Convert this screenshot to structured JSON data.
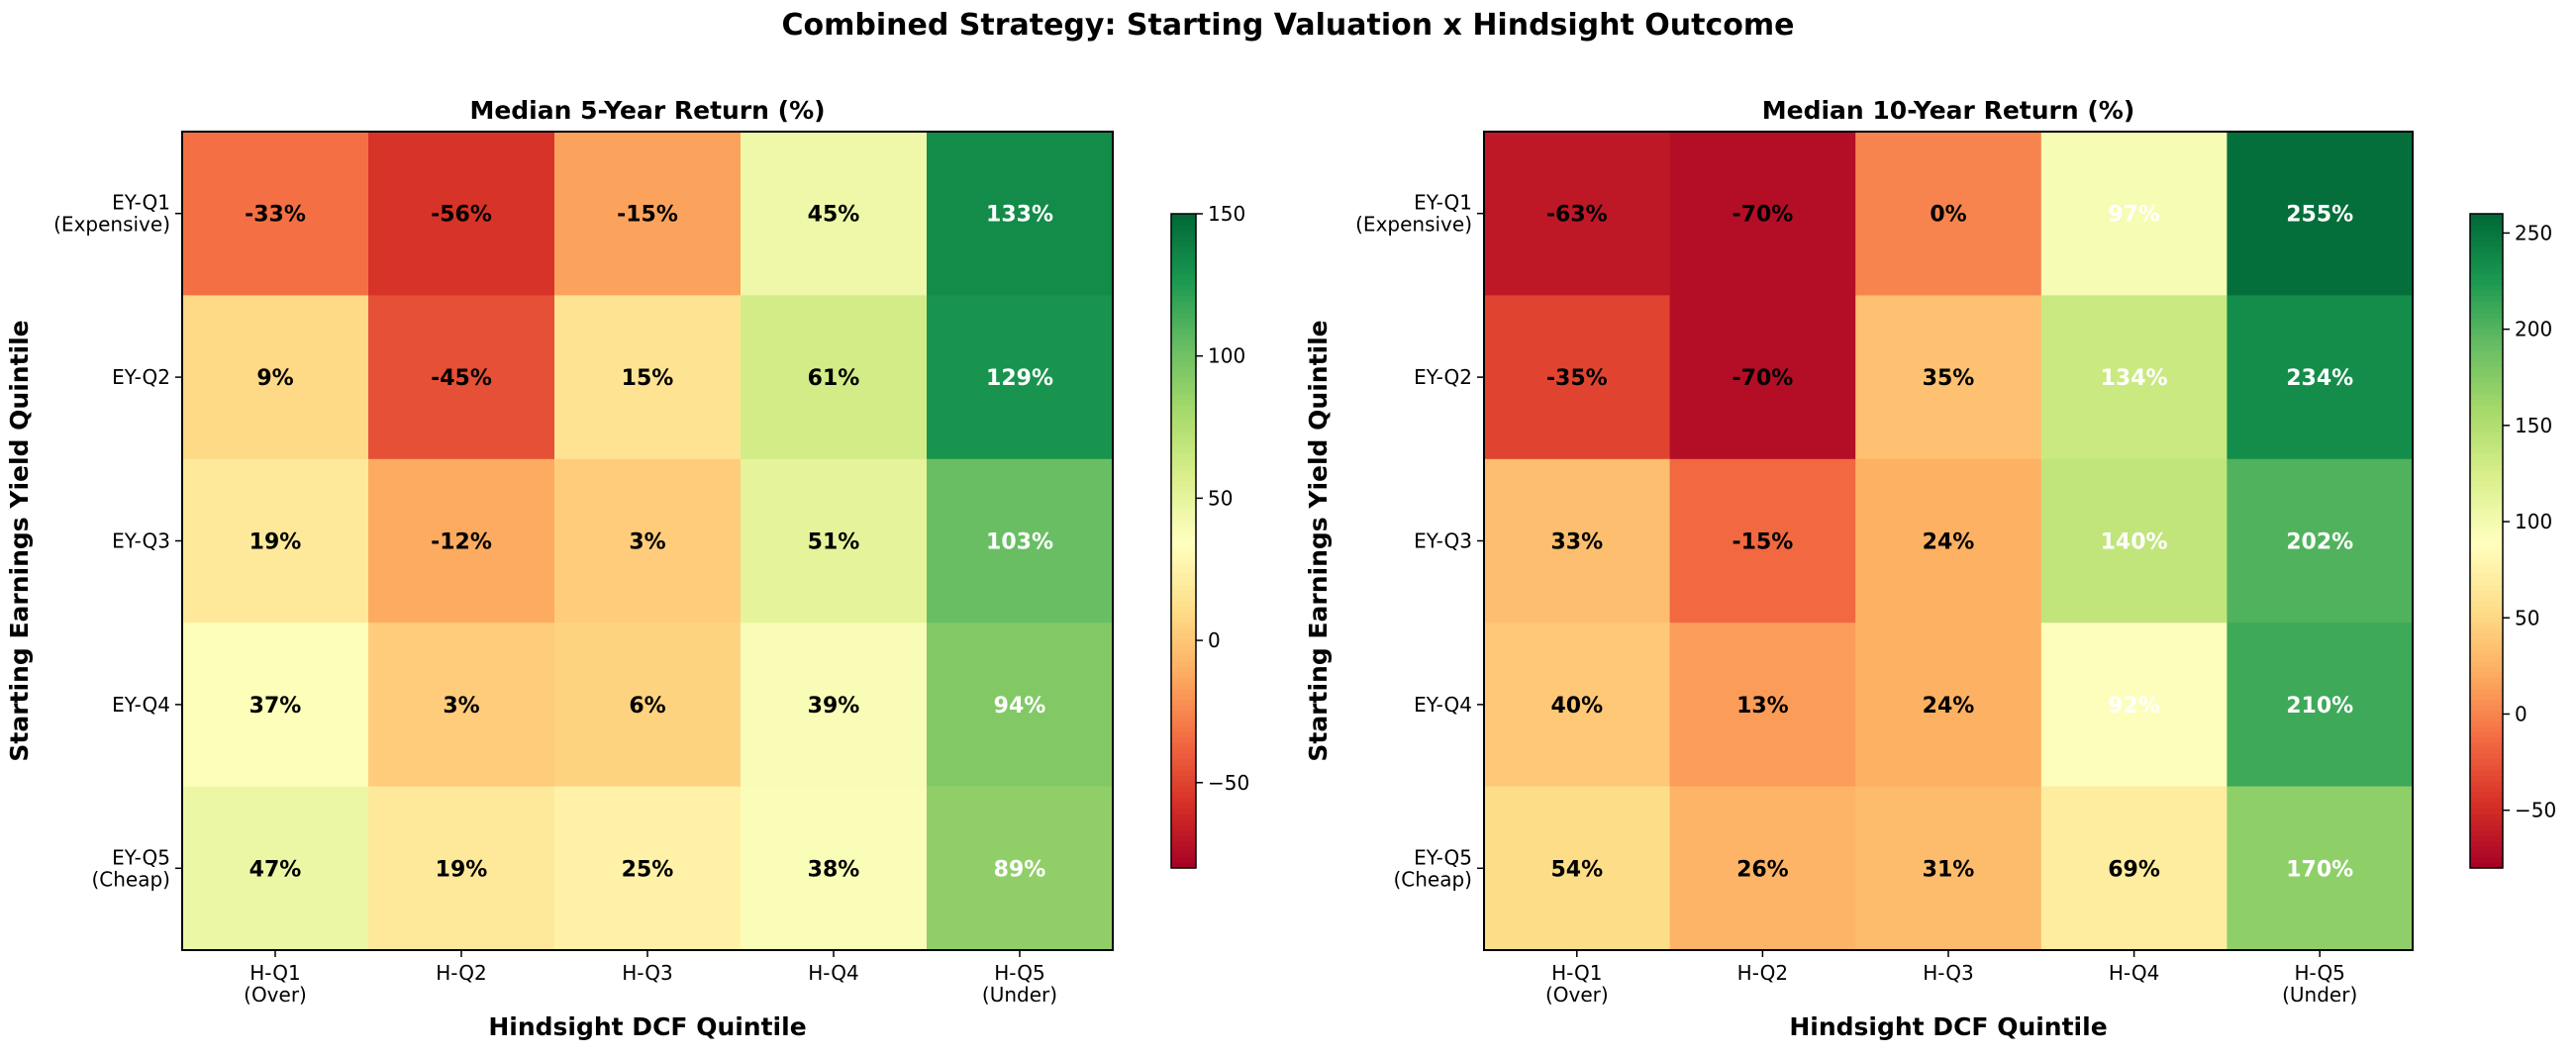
{
  "figure_title": "Combined Strategy: Starting Valuation x Hindsight Outcome",
  "colormap": "RdYlGn",
  "chart_data": [
    {
      "type": "heatmap",
      "title": "Median 5-Year Return (%)",
      "xlabel": "Hindsight DCF Quintile",
      "ylabel": "Starting Earnings Yield Quintile",
      "x_categories": [
        "H-Q1\n(Over)",
        "H-Q2",
        "H-Q3",
        "H-Q4",
        "H-Q5\n(Under)"
      ],
      "y_categories": [
        "EY-Q1\n(Expensive)",
        "EY-Q2",
        "EY-Q3",
        "EY-Q4",
        "EY-Q5\n(Cheap)"
      ],
      "values": [
        [
          -33,
          -56,
          -15,
          45,
          133
        ],
        [
          9,
          -45,
          15,
          61,
          129
        ],
        [
          19,
          -12,
          3,
          51,
          103
        ],
        [
          37,
          3,
          6,
          39,
          94
        ],
        [
          47,
          19,
          25,
          38,
          89
        ]
      ],
      "value_format": "{v}%",
      "colorbar_range": [
        -80,
        150
      ],
      "colorbar_ticks": [
        -50,
        0,
        50,
        100,
        150
      ]
    },
    {
      "type": "heatmap",
      "title": "Median 10-Year Return (%)",
      "xlabel": "Hindsight DCF Quintile",
      "ylabel": "Starting Earnings Yield Quintile",
      "x_categories": [
        "H-Q1\n(Over)",
        "H-Q2",
        "H-Q3",
        "H-Q4",
        "H-Q5\n(Under)"
      ],
      "y_categories": [
        "EY-Q1\n(Expensive)",
        "EY-Q2",
        "EY-Q3",
        "EY-Q4",
        "EY-Q5\n(Cheap)"
      ],
      "values": [
        [
          -63,
          -70,
          0,
          97,
          255
        ],
        [
          -35,
          -70,
          35,
          134,
          234
        ],
        [
          33,
          -15,
          24,
          140,
          202
        ],
        [
          40,
          13,
          24,
          92,
          210
        ],
        [
          54,
          26,
          31,
          69,
          170
        ]
      ],
      "value_format": "{v}%",
      "colorbar_range": [
        -80,
        260
      ],
      "colorbar_ticks": [
        -50,
        0,
        50,
        100,
        150,
        200,
        250
      ]
    }
  ]
}
